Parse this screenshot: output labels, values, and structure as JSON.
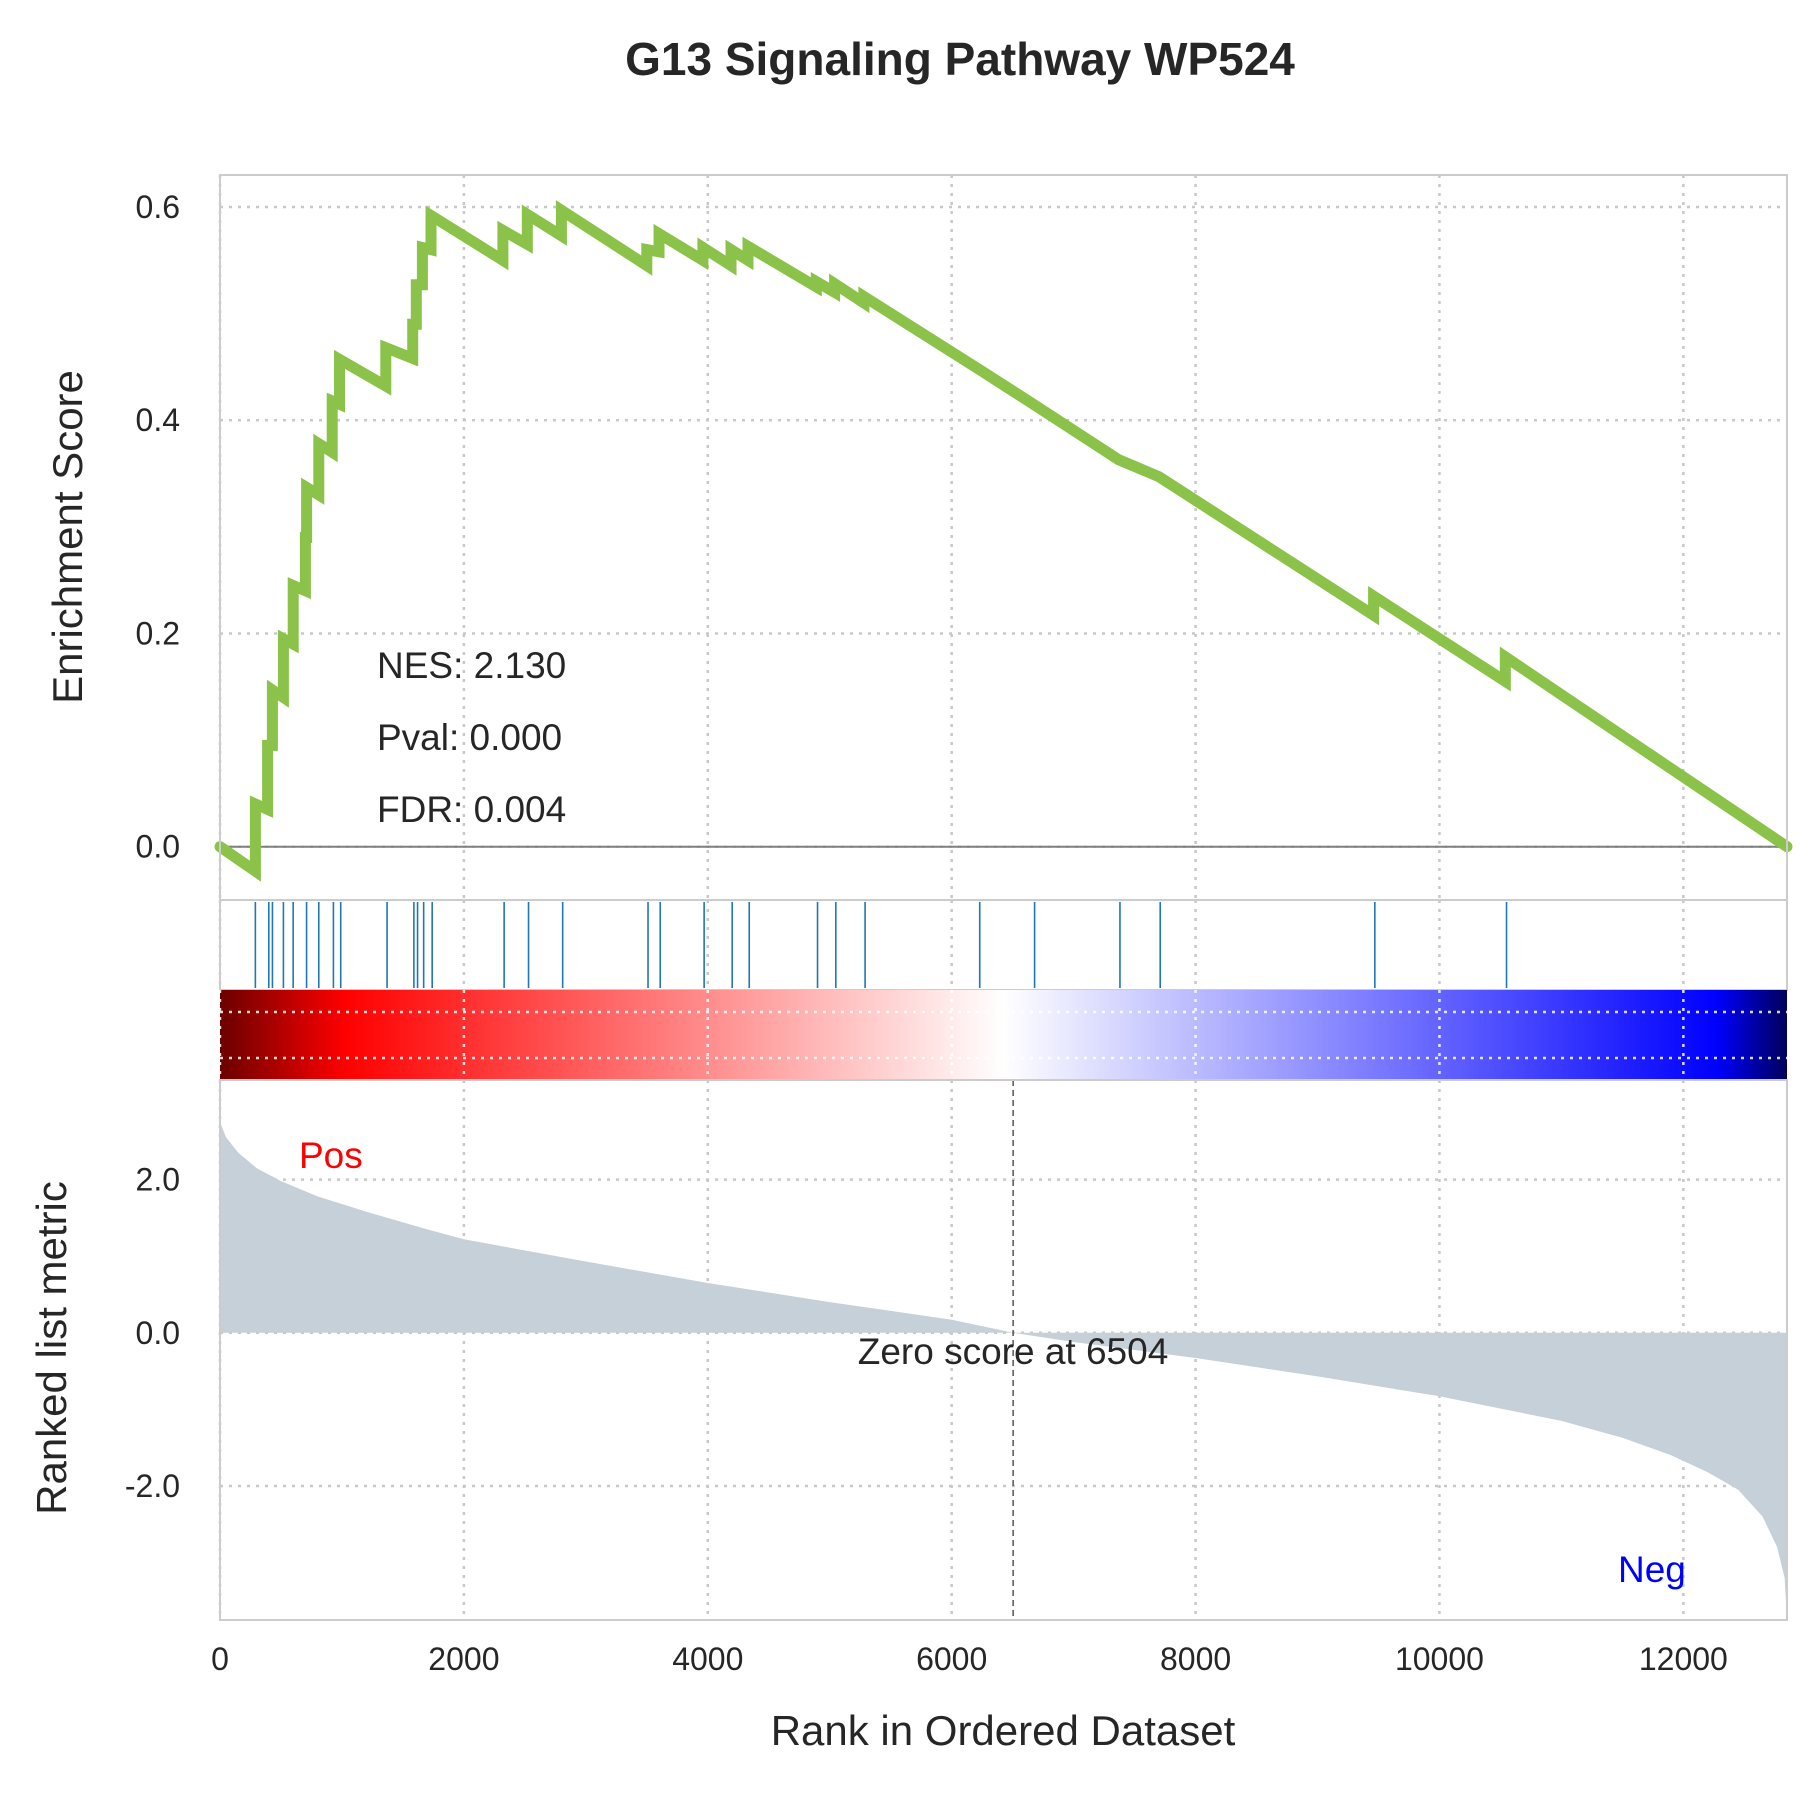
{
  "chart_data": {
    "type": "line",
    "title": "G13 Signaling Pathway WP524",
    "xlabel": "Rank in Ordered Dataset",
    "xlim": [
      0,
      12850
    ],
    "x_ticks": [
      "0",
      "2000",
      "4000",
      "6000",
      "8000",
      "10000",
      "12000"
    ],
    "grid": true,
    "es_panel": {
      "ylabel": "Enrichment Score",
      "ylim": [
        -0.05,
        0.63
      ],
      "y_ticks": [
        "0.0",
        "0.2",
        "0.4",
        "0.6"
      ],
      "line_color": "#8bc34a",
      "stats": [
        "NES: 2.130",
        "Pval: 0.000",
        "FDR: 0.004"
      ],
      "points": [
        [
          0,
          0.0
        ],
        [
          290,
          -0.023
        ],
        [
          290,
          0.04
        ],
        [
          390,
          0.035
        ],
        [
          390,
          0.095
        ],
        [
          430,
          0.095
        ],
        [
          430,
          0.147
        ],
        [
          520,
          0.14
        ],
        [
          520,
          0.195
        ],
        [
          600,
          0.19
        ],
        [
          600,
          0.245
        ],
        [
          700,
          0.24
        ],
        [
          700,
          0.29
        ],
        [
          710,
          0.29
        ],
        [
          710,
          0.337
        ],
        [
          810,
          0.33
        ],
        [
          810,
          0.378
        ],
        [
          920,
          0.37
        ],
        [
          920,
          0.418
        ],
        [
          980,
          0.415
        ],
        [
          980,
          0.457
        ],
        [
          1360,
          0.432
        ],
        [
          1360,
          0.468
        ],
        [
          1580,
          0.458
        ],
        [
          1580,
          0.49
        ],
        [
          1610,
          0.49
        ],
        [
          1610,
          0.527
        ],
        [
          1660,
          0.527
        ],
        [
          1660,
          0.562
        ],
        [
          1730,
          0.56
        ],
        [
          1730,
          0.592
        ],
        [
          2320,
          0.55
        ],
        [
          2320,
          0.578
        ],
        [
          2520,
          0.565
        ],
        [
          2520,
          0.593
        ],
        [
          2800,
          0.573
        ],
        [
          2800,
          0.597
        ],
        [
          3500,
          0.545
        ],
        [
          3500,
          0.56
        ],
        [
          3600,
          0.558
        ],
        [
          3600,
          0.575
        ],
        [
          3960,
          0.55
        ],
        [
          3960,
          0.562
        ],
        [
          4190,
          0.545
        ],
        [
          4190,
          0.56
        ],
        [
          4330,
          0.55
        ],
        [
          4330,
          0.563
        ],
        [
          4890,
          0.525
        ],
        [
          4890,
          0.53
        ],
        [
          5040,
          0.52
        ],
        [
          5040,
          0.528
        ],
        [
          5280,
          0.51
        ],
        [
          5280,
          0.516
        ],
        [
          6220,
          0.448
        ],
        [
          6670,
          0.415
        ],
        [
          7370,
          0.363
        ],
        [
          7700,
          0.347
        ],
        [
          9460,
          0.217
        ],
        [
          9460,
          0.235
        ],
        [
          10540,
          0.155
        ],
        [
          10540,
          0.178
        ],
        [
          12850,
          0.0
        ]
      ]
    },
    "hit_panel": {
      "hit_color": "#1f77b4",
      "hits": [
        290,
        400,
        430,
        520,
        600,
        710,
        810,
        930,
        990,
        1370,
        1590,
        1620,
        1670,
        1740,
        2330,
        2530,
        2810,
        3510,
        3610,
        3970,
        4200,
        4340,
        4900,
        5050,
        5290,
        6230,
        6680,
        7380,
        7710,
        9470,
        10550
      ]
    },
    "heat_panel": {
      "colors": [
        "#6b0000",
        "#ff0000",
        "#ffffff",
        "#0000ff",
        "#00005a"
      ]
    },
    "rank_panel": {
      "ylabel": "Ranked list metric",
      "ylim": [
        -3.75,
        3.3
      ],
      "y_ticks": [
        "2.0",
        "0.0",
        "-2.0"
      ],
      "fill_color": "#c6d0d8",
      "zero_rank": 6504,
      "zero_label": "Zero score at 6504",
      "pos_label": "Pos",
      "neg_label": "Neg",
      "points": [
        [
          0,
          2.75
        ],
        [
          50,
          2.55
        ],
        [
          150,
          2.35
        ],
        [
          300,
          2.15
        ],
        [
          500,
          1.98
        ],
        [
          800,
          1.78
        ],
        [
          1200,
          1.58
        ],
        [
          1700,
          1.35
        ],
        [
          2000,
          1.22
        ],
        [
          3000,
          0.93
        ],
        [
          4000,
          0.65
        ],
        [
          5000,
          0.4
        ],
        [
          6000,
          0.17
        ],
        [
          6504,
          0.0
        ],
        [
          7000,
          -0.12
        ],
        [
          8000,
          -0.33
        ],
        [
          9000,
          -0.57
        ],
        [
          10000,
          -0.83
        ],
        [
          11000,
          -1.15
        ],
        [
          11500,
          -1.37
        ],
        [
          11900,
          -1.6
        ],
        [
          12200,
          -1.82
        ],
        [
          12450,
          -2.05
        ],
        [
          12650,
          -2.4
        ],
        [
          12770,
          -2.8
        ],
        [
          12830,
          -3.2
        ],
        [
          12850,
          -3.75
        ]
      ]
    }
  }
}
